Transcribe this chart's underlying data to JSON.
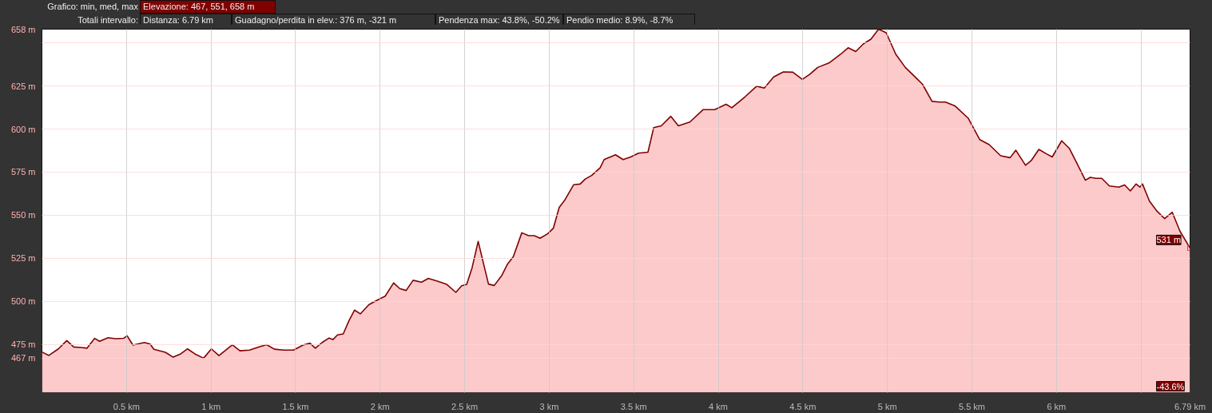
{
  "chart_data": {
    "type": "area",
    "color": "#800000",
    "x": [
      0,
      0.041,
      0.097,
      0.147,
      0.188,
      0.233,
      0.267,
      0.312,
      0.341,
      0.391,
      0.436,
      0.482,
      0.504,
      0.538,
      0.606,
      0.64,
      0.662,
      0.73,
      0.776,
      0.821,
      0.861,
      0.911,
      0.956,
      1.002,
      1.047,
      1.126,
      1.171,
      1.228,
      1.284,
      1.329,
      1.375,
      1.431,
      1.488,
      1.544,
      1.585,
      1.617,
      1.657,
      1.698,
      1.721,
      1.748,
      1.782,
      1.816,
      1.849,
      1.883,
      1.933,
      1.985,
      2.03,
      2.08,
      2.116,
      2.154,
      2.195,
      2.245,
      2.285,
      2.336,
      2.392,
      2.448,
      2.482,
      2.512,
      2.544,
      2.58,
      2.612,
      2.641,
      2.675,
      2.72,
      2.754,
      2.788,
      2.838,
      2.878,
      2.912,
      2.946,
      2.991,
      3.025,
      3.059,
      3.093,
      3.145,
      3.183,
      3.213,
      3.251,
      3.301,
      3.325,
      3.392,
      3.437,
      3.482,
      3.528,
      3.584,
      3.618,
      3.663,
      3.719,
      3.764,
      3.832,
      3.911,
      3.979,
      4.046,
      4.08,
      4.159,
      4.227,
      4.272,
      4.328,
      4.385,
      4.441,
      4.497,
      4.542,
      4.588,
      4.655,
      4.723,
      4.768,
      4.813,
      4.858,
      4.903,
      4.948,
      4.993,
      5.05,
      5.106,
      5.174,
      5.208,
      5.264,
      5.309,
      5.343,
      5.399,
      5.478,
      5.546,
      5.602,
      5.67,
      5.726,
      5.76,
      5.817,
      5.85,
      5.896,
      5.941,
      5.975,
      6.031,
      6.076,
      6.121,
      6.171,
      6.2,
      6.234,
      6.268,
      6.313,
      6.369,
      6.403,
      6.437,
      6.471,
      6.494,
      6.509,
      6.55,
      6.595,
      6.64,
      6.685,
      6.73,
      6.79
    ],
    "values": [
      470.6,
      468.6,
      472.4,
      477.2,
      473.5,
      473.2,
      472.8,
      478.5,
      476.8,
      478.9,
      478.3,
      478.5,
      480,
      474.6,
      476.1,
      475.2,
      472.2,
      470.4,
      467.6,
      469.5,
      472.4,
      469.1,
      467,
      472.4,
      468.5,
      474.8,
      471.3,
      471.7,
      473.5,
      474.8,
      472.2,
      471.7,
      471.7,
      474.6,
      475.7,
      472.8,
      476.1,
      478.7,
      477.8,
      480.5,
      481.1,
      488.8,
      494.9,
      492.7,
      498,
      500.8,
      503,
      510.7,
      507.4,
      506.3,
      512.2,
      511.1,
      513.3,
      511.8,
      510,
      505.2,
      509,
      509.8,
      519.5,
      534.8,
      521.7,
      510,
      509.2,
      515.1,
      521.7,
      526,
      539.8,
      538.1,
      538.1,
      536.6,
      539.2,
      542.5,
      554.5,
      558.9,
      567.7,
      568.1,
      571,
      573.1,
      577.5,
      582.3,
      585.1,
      582.3,
      583.8,
      586,
      586.6,
      600.8,
      601.9,
      607.4,
      601.9,
      604.1,
      611.3,
      611.3,
      614.4,
      612.4,
      618.8,
      624.9,
      623.8,
      630.3,
      633.2,
      633,
      628.8,
      631.9,
      635.8,
      638.4,
      643.4,
      647.2,
      645,
      649.4,
      652.2,
      658,
      655.9,
      643.4,
      635.8,
      629.3,
      626,
      616.1,
      615.7,
      615.7,
      613.5,
      606.3,
      593.9,
      591,
      584.5,
      583.4,
      587.7,
      579,
      581.6,
      588.2,
      585.6,
      583.8,
      593.2,
      588.8,
      580.1,
      570.3,
      572,
      571.4,
      571.4,
      567,
      566.3,
      567.6,
      564.1,
      568.1,
      566.3,
      568.1,
      558.2,
      552.3,
      548,
      551.7,
      540.8,
      531
    ],
    "xlim": [
      0,
      6.79
    ],
    "ylim": [
      447,
      658
    ],
    "xticks": [
      {
        "value": 0.5,
        "label": "0.5 km"
      },
      {
        "value": 1,
        "label": "1 km"
      },
      {
        "value": 1.5,
        "label": "1.5 km"
      },
      {
        "value": 2,
        "label": "2 km"
      },
      {
        "value": 2.5,
        "label": "2.5 km"
      },
      {
        "value": 3,
        "label": "3 km"
      },
      {
        "value": 3.5,
        "label": "3.5 km"
      },
      {
        "value": 4,
        "label": "4 km"
      },
      {
        "value": 4.5,
        "label": "4.5 km"
      },
      {
        "value": 5,
        "label": "5 km"
      },
      {
        "value": 5.5,
        "label": "5.5 km"
      },
      {
        "value": 6,
        "label": "6 km"
      },
      {
        "value": 6.5,
        "label": null
      },
      {
        "value": 6.79,
        "label": "6.79 km"
      }
    ],
    "yticks": [
      {
        "value": 467,
        "label": "467 m"
      },
      {
        "value": 475,
        "label": "475 m"
      },
      {
        "value": 500,
        "label": "500 m"
      },
      {
        "value": 525,
        "label": "525 m"
      },
      {
        "value": 550,
        "label": "550 m"
      },
      {
        "value": 575,
        "label": "575 m"
      },
      {
        "value": 600,
        "label": "600 m"
      },
      {
        "value": 625,
        "label": "625 m"
      },
      {
        "value": 650,
        "label": null
      },
      {
        "value": 658,
        "label": "658 m"
      }
    ],
    "grid": true,
    "annotations": [
      "Grafico: min, med, max",
      "Elevazione: 467, 551, 658 m",
      "Totali intervallo:",
      "Distanza: 6.79 km",
      "Guadagno/perdita in elev.: 376 m, -321 m",
      "Pendenza max: 43.8%, -50.2%",
      "Pendio medio: 8.9%, -8.7%",
      {
        "text": "531 m",
        "x": 6.79,
        "y": 531
      },
      "-43.6%"
    ]
  }
}
